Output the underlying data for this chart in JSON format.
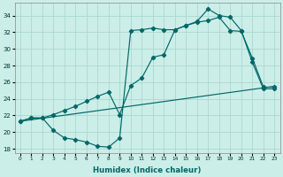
{
  "xlabel": "Humidex (Indice chaleur)",
  "bg_color": "#cceee8",
  "grid_color": "#aad8d0",
  "line_color": "#006868",
  "xlim": [
    -0.5,
    23.5
  ],
  "ylim": [
    17.5,
    35.5
  ],
  "yticks": [
    18,
    20,
    22,
    24,
    26,
    28,
    30,
    32,
    34
  ],
  "xticks": [
    0,
    1,
    2,
    3,
    4,
    5,
    6,
    7,
    8,
    9,
    10,
    11,
    12,
    13,
    14,
    15,
    16,
    17,
    18,
    19,
    20,
    21,
    22,
    23
  ],
  "line1_x": [
    0,
    1,
    2,
    3,
    4,
    5,
    6,
    7,
    8,
    9,
    10,
    11,
    12,
    13,
    14,
    15,
    16,
    17,
    18,
    19,
    20,
    21,
    22,
    23
  ],
  "line1_y": [
    21.3,
    21.7,
    21.7,
    20.2,
    19.3,
    19.1,
    18.8,
    18.3,
    18.2,
    19.3,
    32.2,
    32.3,
    32.5,
    32.3,
    32.3,
    32.8,
    33.3,
    34.8,
    34.0,
    33.8,
    32.2,
    28.4,
    25.2,
    25.2
  ],
  "line2_x": [
    0,
    1,
    2,
    3,
    4,
    5,
    6,
    7,
    8,
    9,
    10,
    11,
    12,
    13,
    14,
    15,
    16,
    17,
    18,
    19,
    20,
    21,
    22,
    23
  ],
  "line2_y": [
    21.3,
    21.7,
    21.7,
    22.1,
    22.6,
    23.1,
    23.7,
    24.3,
    24.8,
    22.1,
    25.6,
    26.5,
    29.0,
    29.3,
    32.3,
    32.8,
    33.2,
    33.4,
    33.8,
    32.2,
    32.1,
    28.9,
    25.4,
    25.4
  ],
  "line3_x": [
    0,
    23
  ],
  "line3_y": [
    21.3,
    25.5
  ]
}
